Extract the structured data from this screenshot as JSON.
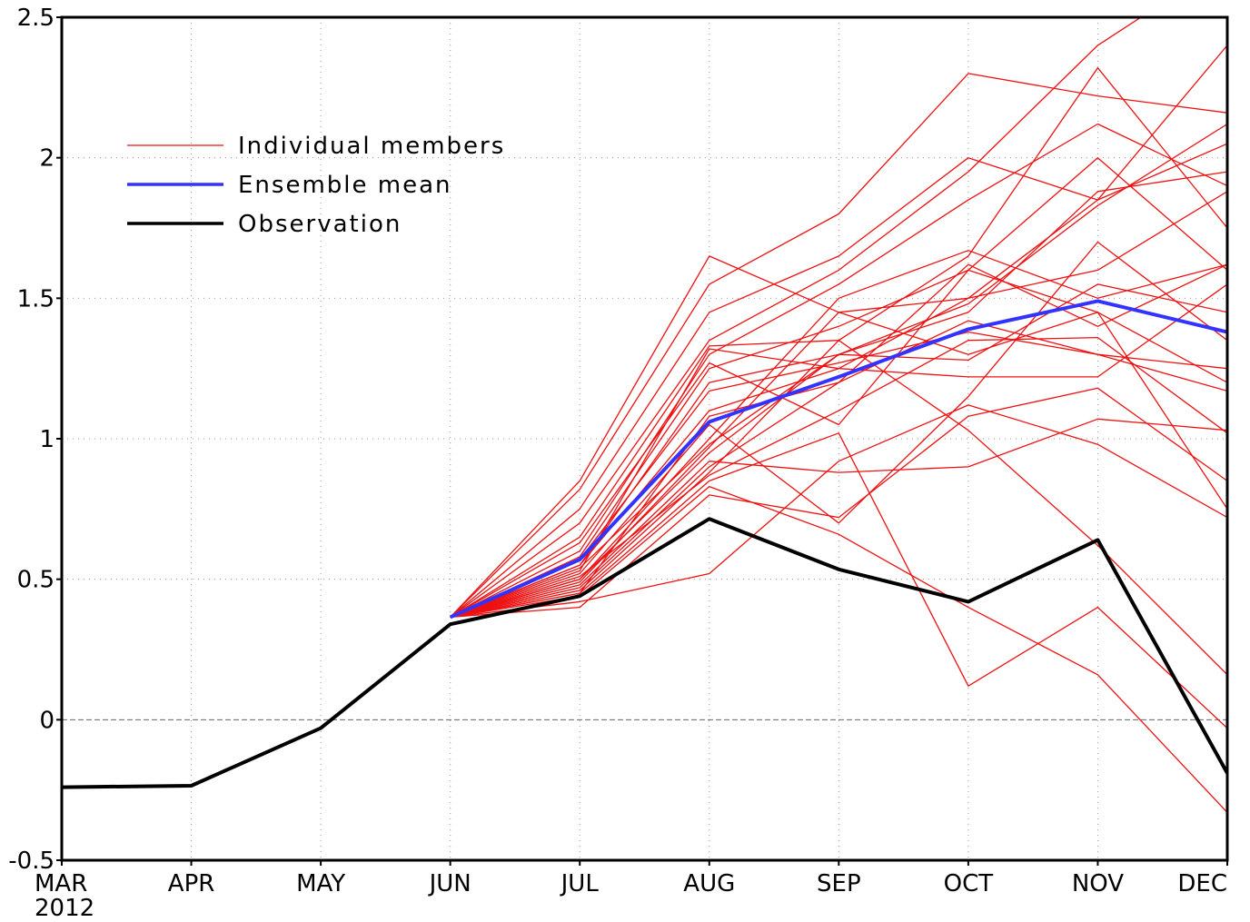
{
  "chart_data": {
    "type": "line",
    "categories": [
      "MAR",
      "APR",
      "MAY",
      "JUN",
      "JUL",
      "AUG",
      "SEP",
      "OCT",
      "NOV",
      "DEC"
    ],
    "year_label": "2012",
    "ylim": [
      -0.5,
      2.5
    ],
    "yticks": [
      -0.5,
      0,
      0.5,
      1,
      1.5,
      2,
      2.5
    ],
    "grid": true,
    "legend": "upper left",
    "series": [
      {
        "name": "Individual members",
        "color": "#ee1111",
        "width": 1.3,
        "values": [
          [
            null,
            null,
            null,
            0.365,
            0.85,
            1.65,
            1.45,
            1.3,
            1.45,
            1.2
          ],
          [
            null,
            null,
            null,
            0.365,
            0.82,
            1.55,
            1.8,
            2.3,
            2.22,
            2.16
          ],
          [
            null,
            null,
            null,
            0.365,
            0.75,
            1.45,
            1.65,
            2.0,
            1.85,
            2.05
          ],
          [
            null,
            null,
            null,
            0.365,
            0.7,
            1.35,
            1.6,
            1.95,
            2.4,
            2.7
          ],
          [
            null,
            null,
            null,
            0.365,
            0.65,
            1.33,
            1.35,
            1.65,
            2.32,
            1.75
          ],
          [
            null,
            null,
            null,
            0.365,
            0.6,
            1.3,
            1.55,
            1.85,
            2.12,
            1.9
          ],
          [
            null,
            null,
            null,
            0.365,
            0.58,
            1.25,
            1.4,
            1.6,
            2.0,
            1.6
          ],
          [
            null,
            null,
            null,
            0.365,
            0.55,
            1.2,
            1.3,
            1.45,
            1.88,
            1.95
          ],
          [
            null,
            null,
            null,
            0.365,
            0.55,
            1.1,
            1.25,
            1.5,
            1.85,
            2.4
          ],
          [
            null,
            null,
            null,
            0.365,
            0.52,
            1.05,
            0.7,
            1.15,
            1.7,
            1.35
          ],
          [
            null,
            null,
            null,
            0.365,
            0.5,
            1.0,
            1.5,
            1.67,
            1.5,
            1.62
          ],
          [
            null,
            null,
            null,
            0.365,
            0.5,
            0.95,
            1.3,
            1.28,
            1.55,
            1.45
          ],
          [
            null,
            null,
            null,
            0.365,
            0.48,
            0.92,
            0.88,
            0.9,
            1.07,
            1.03
          ],
          [
            null,
            null,
            null,
            0.365,
            0.47,
            0.9,
            1.2,
            1.42,
            1.3,
            1.25
          ],
          [
            null,
            null,
            null,
            0.365,
            0.46,
            0.88,
            1.35,
            1.03,
            0.62,
            0.16
          ],
          [
            null,
            null,
            null,
            0.365,
            0.45,
            0.85,
            1.02,
            0.12,
            0.4,
            -0.03
          ],
          [
            null,
            null,
            null,
            0.365,
            0.44,
            0.83,
            0.66,
            0.4,
            0.16,
            -0.33
          ],
          [
            null,
            null,
            null,
            0.365,
            0.42,
            0.52,
            0.92,
            1.12,
            0.98,
            0.72
          ],
          [
            null,
            null,
            null,
            0.365,
            0.4,
            0.8,
            0.72,
            1.08,
            1.18,
            0.85
          ],
          [
            null,
            null,
            null,
            0.365,
            0.53,
            1.32,
            1.25,
            1.22,
            1.22,
            1.55
          ],
          [
            null,
            null,
            null,
            0.365,
            0.57,
            1.17,
            1.27,
            1.38,
            1.3,
            1.17
          ],
          [
            null,
            null,
            null,
            0.365,
            0.49,
            0.97,
            1.45,
            1.5,
            1.6,
            1.88
          ],
          [
            null,
            null,
            null,
            0.365,
            0.51,
            0.87,
            1.1,
            1.35,
            1.36,
            1.02
          ],
          [
            null,
            null,
            null,
            0.365,
            0.63,
            1.27,
            1.05,
            1.6,
            1.45,
            0.75
          ],
          [
            null,
            null,
            null,
            0.365,
            0.45,
            1.08,
            1.2,
            1.62,
            1.4,
            1.62
          ],
          [
            null,
            null,
            null,
            0.365,
            0.54,
            0.98,
            1.3,
            1.48,
            1.83,
            2.12
          ]
        ]
      },
      {
        "name": "Ensemble mean",
        "color": "#3333ff",
        "width": 4,
        "values": [
          null,
          null,
          null,
          0.365,
          0.57,
          1.06,
          1.22,
          1.39,
          1.49,
          1.38
        ]
      },
      {
        "name": "Observation",
        "color": "#000000",
        "width": 4,
        "values": [
          -0.24,
          -0.235,
          -0.03,
          0.34,
          0.44,
          0.715,
          0.535,
          0.42,
          0.64,
          -0.19
        ]
      }
    ]
  }
}
